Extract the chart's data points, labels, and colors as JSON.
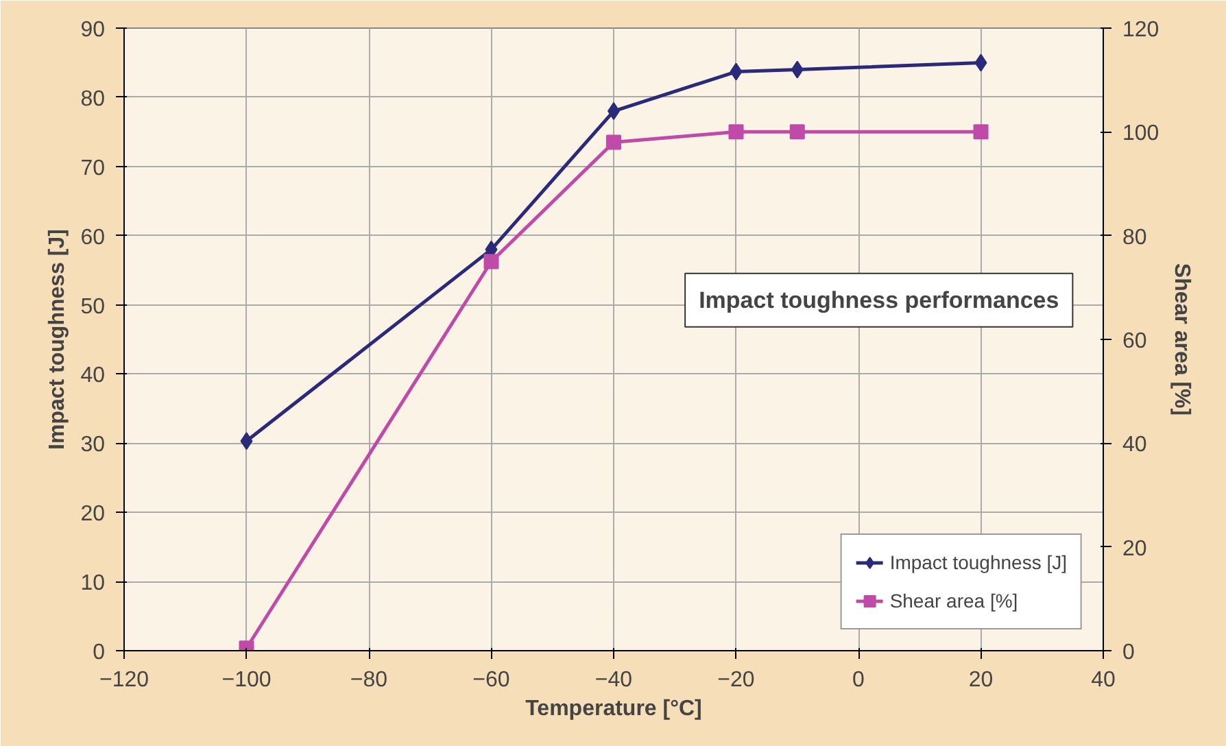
{
  "chart_data": {
    "type": "line",
    "x": [
      -100,
      -60,
      -40,
      -20,
      -10,
      20
    ],
    "series": [
      {
        "name": "Impact toughness [J]",
        "color": "#2b2a7a",
        "marker": "diamond",
        "values": [
          30.3,
          58,
          78,
          83.7,
          84,
          85
        ]
      },
      {
        "name": "Shear area [%]",
        "color": "#c04aa8",
        "marker": "square",
        "axis": "y2",
        "values": [
          0.5,
          75,
          98,
          100,
          100,
          100
        ]
      }
    ],
    "xlabel": "Temperature [°C]",
    "ylabel": "Impact toughness [J]",
    "y2label": "Shear area [%]",
    "xlim": [
      -120,
      40
    ],
    "xticks": [
      -120,
      -100,
      -80,
      -60,
      -40,
      -20,
      0,
      20,
      40
    ],
    "ylim": [
      0,
      90
    ],
    "yticks": [
      0,
      10,
      20,
      30,
      40,
      50,
      60,
      70,
      80,
      90
    ],
    "y2lim": [
      0,
      120
    ],
    "y2ticks": [
      0,
      20,
      40,
      60,
      80,
      100,
      120
    ],
    "annotations": [
      "Impact toughness performances"
    ],
    "grid": true,
    "legend": "bottom right",
    "line_style": "solid"
  }
}
